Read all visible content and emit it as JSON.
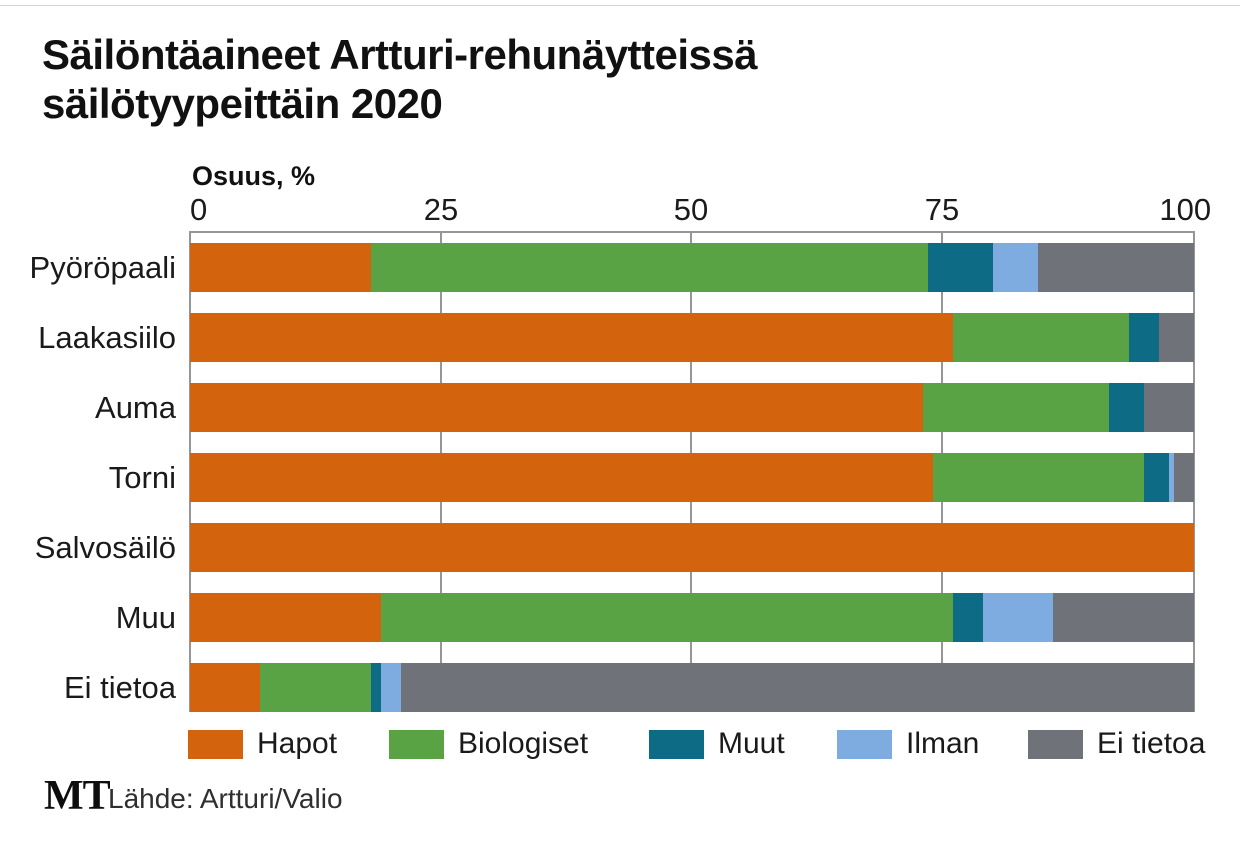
{
  "title_lines": [
    "Säilöntäaineet Artturi-rehunäytteissä",
    "säilötyypeittäin 2020"
  ],
  "source": {
    "logo": "MT",
    "text": "Lähde: Artturi/Valio"
  },
  "colors": {
    "hapot": "#d3630c",
    "biologiset": "#5aa344",
    "muut": "#0d6b85",
    "ilman": "#7face0",
    "ei_tietoa": "#70727a",
    "gridline": "#969696",
    "title_text": "#111111"
  },
  "chart_data": {
    "type": "bar",
    "orientation": "horizontal",
    "stacked": true,
    "title": "Säilöntäaineet Artturi-rehunäytteissä säilötyypeittäin 2020",
    "xlabel": "Osuus, %",
    "ylabel": "",
    "xlim": [
      0,
      100
    ],
    "xticks": [
      0,
      25,
      50,
      75,
      100
    ],
    "xtick_labels": [
      "0",
      "25",
      "50",
      "75",
      "100"
    ],
    "grid": "vertical",
    "legend_position": "bottom",
    "categories": [
      "Pyöröpaali",
      "Laakasiilo",
      "Auma",
      "Torni",
      "Salvosäilö",
      "Muu",
      "Ei tietoa"
    ],
    "series": [
      {
        "name": "Hapot",
        "color": "#d3630c",
        "values": [
          18,
          76,
          73,
          74,
          100,
          19,
          7
        ]
      },
      {
        "name": "Biologiset",
        "color": "#5aa344",
        "values": [
          55.5,
          17.5,
          18.5,
          21,
          0,
          57,
          11
        ]
      },
      {
        "name": "Muut",
        "color": "#0d6b85",
        "values": [
          6.5,
          3,
          3.5,
          2.5,
          0,
          3,
          1
        ]
      },
      {
        "name": "Ilman",
        "color": "#7face0",
        "values": [
          4.5,
          0,
          0,
          0.5,
          0,
          7,
          2
        ]
      },
      {
        "name": "Ei tietoa",
        "color": "#70727a",
        "values": [
          15.5,
          3.5,
          5,
          2,
          0,
          14,
          79
        ]
      }
    ]
  }
}
